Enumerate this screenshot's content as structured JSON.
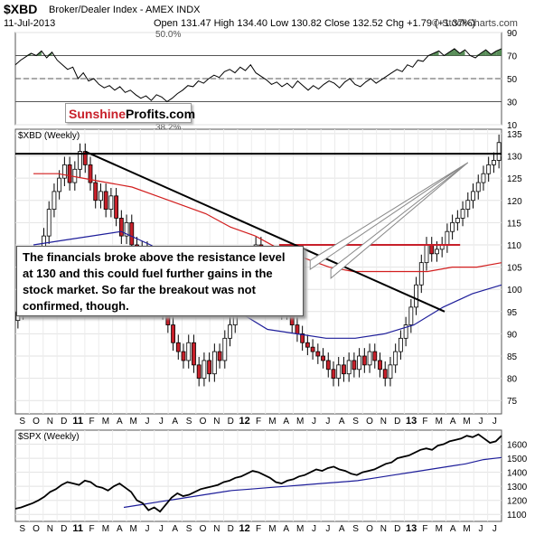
{
  "header": {
    "symbol": "$XBD",
    "name": "Broker/Dealer Index - AMEX INDX",
    "date": "11-Jul-2013",
    "ohlc": "Open 131.47  High 134.40  Low 130.82  Close 132.52  Chg +1.79 (+1.37%)",
    "watermark": "© StockCharts.com"
  },
  "logo": {
    "part1": "Sunshine",
    "part2": "Profits.com"
  },
  "annotation": "The financials broke above the resistance level at 130 and this could fuel further gains in the stock market. So far the breakout was not confirmed, though.",
  "colors": {
    "up": "#ffffff",
    "down": "#c8202a",
    "ma_red": "#d21e1e",
    "ma_blue": "#1e1e9a",
    "rsi_fill": "#3c7a3c",
    "resistance": "#c8202a"
  },
  "chart_data": [
    {
      "type": "line",
      "title": "RSI(14)",
      "ylim": [
        10,
        90
      ],
      "ticks": [
        10,
        30,
        50,
        70,
        90
      ],
      "reference_lines": [
        30,
        50,
        70
      ],
      "annotations": [
        "50.0%",
        "38.2%"
      ],
      "values": [
        62,
        66,
        69,
        72,
        70,
        74,
        68,
        73,
        66,
        62,
        58,
        60,
        50,
        55,
        48,
        50,
        45,
        42,
        44,
        40,
        43,
        38,
        40,
        36,
        33,
        35,
        31,
        36,
        34,
        30,
        33,
        37,
        40,
        44,
        43,
        48,
        46,
        50,
        53,
        51,
        56,
        58,
        55,
        60,
        57,
        62,
        55,
        52,
        49,
        45,
        47,
        43,
        46,
        42,
        48,
        44,
        40,
        44,
        41,
        45,
        48,
        46,
        42,
        47,
        50,
        45,
        43,
        47,
        50,
        46,
        49,
        52,
        55,
        58,
        56,
        62,
        60,
        66,
        65,
        70,
        72,
        74,
        70,
        73,
        76,
        72,
        75,
        70,
        68,
        72,
        75,
        71,
        74,
        76
      ]
    },
    {
      "type": "candlestick",
      "title": "$XBD (Weekly)",
      "ylim": [
        72,
        136
      ],
      "ticks": [
        75,
        80,
        85,
        90,
        95,
        100,
        105,
        110,
        115,
        120,
        125,
        130,
        135
      ],
      "x_labels": [
        "S",
        "O",
        "N",
        "D",
        "11",
        "F",
        "M",
        "A",
        "M",
        "J",
        "J",
        "A",
        "S",
        "O",
        "N",
        "D",
        "12",
        "F",
        "M",
        "A",
        "M",
        "J",
        "J",
        "A",
        "S",
        "O",
        "N",
        "D",
        "13",
        "F",
        "M",
        "A",
        "M",
        "J",
        "J"
      ],
      "close": [
        95,
        99,
        101,
        104,
        108,
        112,
        118,
        122,
        125,
        128,
        124,
        127,
        131,
        128,
        124,
        120,
        122,
        118,
        121,
        116,
        112,
        115,
        110,
        107,
        109,
        104,
        101,
        98,
        95,
        92,
        88,
        86,
        84,
        88,
        83,
        80,
        84,
        81,
        86,
        84,
        89,
        92,
        96,
        101,
        106,
        108,
        110,
        107,
        104,
        101,
        98,
        95,
        96,
        92,
        90,
        88,
        87,
        86,
        85,
        84,
        82,
        80,
        83,
        81,
        84,
        82,
        85,
        83,
        86,
        84,
        82,
        80,
        83,
        86,
        89,
        92,
        96,
        101,
        106,
        110,
        108,
        109,
        110,
        113,
        115,
        116,
        118,
        120,
        122,
        124,
        126,
        128,
        129,
        133
      ],
      "moving_averages": [
        {
          "name": "MA red",
          "values": [
            126,
            126,
            125,
            124,
            123,
            121,
            119,
            117,
            114,
            112,
            109,
            107,
            105,
            104,
            104,
            104,
            104,
            105,
            105,
            106
          ]
        },
        {
          "name": "MA blue",
          "values": [
            110,
            111,
            112,
            113,
            110,
            106,
            99,
            95,
            91,
            90,
            89,
            89,
            90,
            92,
            96,
            99,
            101
          ]
        }
      ],
      "trendlines": [
        {
          "name": "resistance-130",
          "value": 130.5
        },
        {
          "name": "resistance-110",
          "value": 110
        },
        {
          "name": "downtrend",
          "from": 131,
          "to": 95
        }
      ]
    },
    {
      "type": "line",
      "title": "$SPX (Weekly)",
      "ylim": [
        1050,
        1700
      ],
      "ticks": [
        1100,
        1200,
        1300,
        1400,
        1500,
        1600
      ],
      "x_labels": [
        "S",
        "O",
        "N",
        "D",
        "11",
        "F",
        "M",
        "A",
        "M",
        "J",
        "J",
        "A",
        "S",
        "O",
        "N",
        "D",
        "12",
        "F",
        "M",
        "A",
        "M",
        "J",
        "J",
        "A",
        "S",
        "O",
        "N",
        "D",
        "13",
        "F",
        "M",
        "A",
        "M",
        "J",
        "J"
      ],
      "values": [
        1140,
        1150,
        1165,
        1180,
        1200,
        1225,
        1260,
        1280,
        1310,
        1330,
        1320,
        1310,
        1340,
        1330,
        1300,
        1290,
        1270,
        1300,
        1320,
        1290,
        1260,
        1200,
        1180,
        1130,
        1150,
        1120,
        1170,
        1220,
        1250,
        1230,
        1240,
        1260,
        1280,
        1290,
        1300,
        1310,
        1330,
        1340,
        1360,
        1370,
        1390,
        1410,
        1400,
        1380,
        1360,
        1330,
        1320,
        1340,
        1350,
        1370,
        1380,
        1400,
        1420,
        1410,
        1430,
        1440,
        1420,
        1410,
        1390,
        1380,
        1400,
        1410,
        1420,
        1440,
        1460,
        1470,
        1500,
        1510,
        1520,
        1540,
        1560,
        1570,
        1560,
        1590,
        1600,
        1620,
        1630,
        1640,
        1660,
        1650,
        1670,
        1640,
        1610,
        1620,
        1660
      ],
      "moving_average": {
        "name": "MA blue",
        "values": [
          1150,
          1170,
          1190,
          1210,
          1230,
          1250,
          1270,
          1280,
          1290,
          1300,
          1310,
          1320,
          1330,
          1340,
          1360,
          1380,
          1400,
          1420,
          1440,
          1460,
          1490,
          1505
        ]
      }
    }
  ]
}
